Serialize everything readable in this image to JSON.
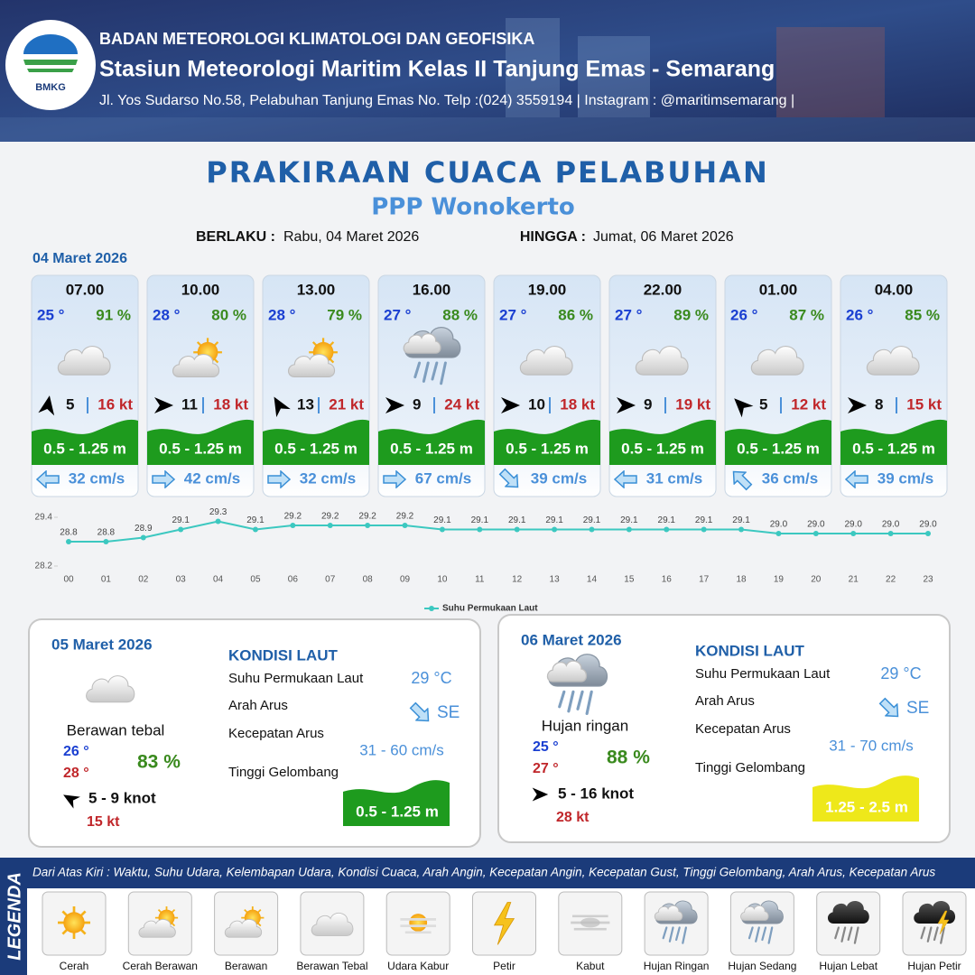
{
  "header": {
    "logo": "BMKG",
    "org": "BADAN METEOROLOGI KLIMATOLOGI DAN GEOFISIKA",
    "station": "Stasiun Meteorologi Maritim Kelas II Tanjung Emas - Semarang",
    "address": "Jl. Yos Sudarso No.58, Pelabuhan Tanjung Emas No. Telp :(024) 3559194 | Instagram : @maritimsemarang |"
  },
  "title": "PRAKIRAAN CUACA PELABUHAN",
  "subtitle": "PPP Wonokerto",
  "validity": {
    "from_label": "BERLAKU :",
    "from": "Rabu, 04 Maret 2026",
    "to_label": "HINGGA :",
    "to": "Jumat, 06 Maret 2026"
  },
  "day1": {
    "date": "04 Maret 2026",
    "slots": [
      {
        "time": "07.00",
        "temp": "25 °",
        "humidity": "91 %",
        "wind": "5",
        "gust": "16 kt",
        "wave": "0.5 - 1.25 m",
        "current": "32 cm/s"
      },
      {
        "time": "10.00",
        "temp": "28 °",
        "humidity": "80 %",
        "wind": "11",
        "gust": "18 kt",
        "wave": "0.5 - 1.25 m",
        "current": "42 cm/s"
      },
      {
        "time": "13.00",
        "temp": "28 °",
        "humidity": "79 %",
        "wind": "13",
        "gust": "21 kt",
        "wave": "0.5 - 1.25 m",
        "current": "32 cm/s"
      },
      {
        "time": "16.00",
        "temp": "27 °",
        "humidity": "88 %",
        "wind": "9",
        "gust": "24 kt",
        "wave": "0.5 - 1.25 m",
        "current": "67 cm/s"
      },
      {
        "time": "19.00",
        "temp": "27 °",
        "humidity": "86 %",
        "wind": "10",
        "gust": "18 kt",
        "wave": "0.5 - 1.25 m",
        "current": "39 cm/s"
      },
      {
        "time": "22.00",
        "temp": "27 °",
        "humidity": "89 %",
        "wind": "9",
        "gust": "19 kt",
        "wave": "0.5 - 1.25 m",
        "current": "31 cm/s"
      },
      {
        "time": "01.00",
        "temp": "26 °",
        "humidity": "87 %",
        "wind": "5",
        "gust": "12 kt",
        "wave": "0.5 - 1.25 m",
        "current": "36 cm/s"
      },
      {
        "time": "04.00",
        "temp": "26 °",
        "humidity": "85 %",
        "wind": "8",
        "gust": "15 kt",
        "wave": "0.5 - 1.25 m",
        "current": "39 cm/s"
      }
    ]
  },
  "sst_chart": {
    "type": "line",
    "categories": [
      "00",
      "01",
      "02",
      "03",
      "04",
      "05",
      "06",
      "07",
      "08",
      "09",
      "10",
      "11",
      "12",
      "13",
      "14",
      "15",
      "16",
      "17",
      "18",
      "19",
      "20",
      "21",
      "22",
      "23"
    ],
    "series": [
      {
        "name": "Suhu Permukaan Laut",
        "color": "#3cc8c0",
        "values": [
          28.8,
          28.8,
          28.9,
          29.1,
          29.3,
          29.1,
          29.2,
          29.2,
          29.2,
          29.2,
          29.1,
          29.1,
          29.1,
          29.1,
          29.1,
          29.1,
          29.1,
          29.1,
          29.1,
          29.0,
          29.0,
          29.0,
          29.0,
          29.0
        ],
        "value_labels": [
          "28.8",
          "28.8",
          "28.9",
          "29.1",
          "29.3",
          "29.1",
          "29.2",
          "29.2",
          "29.2",
          "29.2",
          "29.1",
          "29.1",
          "29.1",
          "29.1",
          "29.1",
          "29.1",
          "29.1",
          "29.1",
          "29.1",
          "29.0",
          "29.0",
          "29.0",
          "29.0",
          "29.0"
        ]
      }
    ],
    "ylim": [
      28.2,
      29.4
    ],
    "yticks": [
      28.2,
      29.4
    ]
  },
  "days": [
    {
      "date": "05 Maret 2026",
      "condition": "Berawan tebal",
      "temp_min": "26 °",
      "temp_max": "28 °",
      "humidity": "83 %",
      "wind": "5 - 9 knot",
      "gust": "15 kt",
      "sea": {
        "heading": "KONDISI LAUT",
        "sst_label": "Suhu Permukaan Laut",
        "sst": "29 °C",
        "dir_label": "Arah Arus",
        "dir": "SE",
        "speed_label": "Kecepatan Arus",
        "speed": "31 - 60 cm/s",
        "wave_label": "Tinggi Gelombang",
        "wave": "0.5 - 1.25 m"
      }
    },
    {
      "date": "06 Maret 2026",
      "condition": "Hujan ringan",
      "temp_min": "25 °",
      "temp_max": "27 °",
      "humidity": "88 %",
      "wind": "5 - 16 knot",
      "gust": "28 kt",
      "sea": {
        "heading": "KONDISI LAUT",
        "sst_label": "Suhu Permukaan Laut",
        "sst": "29 °C",
        "dir_label": "Arah Arus",
        "dir": "SE",
        "speed_label": "Kecepatan Arus",
        "speed": "31 - 70 cm/s",
        "wave_label": "Tinggi Gelombang",
        "wave": "1.25 - 2.5 m"
      }
    }
  ],
  "legend": {
    "title": "LEGENDA",
    "description": "Dari Atas Kiri : Waktu, Suhu Udara, Kelembapan Udara, Kondisi Cuaca, Arah Angin, Kecepatan Angin, Kecepatan Gust, Tinggi Gelombang, Arah Arus, Kecepatan Arus",
    "items": [
      "Cerah",
      "Cerah Berawan",
      "Berawan",
      "Berawan Tebal",
      "Udara Kabur",
      "Petir",
      "Kabut",
      "Hujan Ringan",
      "Hujan Sedang",
      "Hujan Lebat",
      "Hujan Petir"
    ]
  }
}
